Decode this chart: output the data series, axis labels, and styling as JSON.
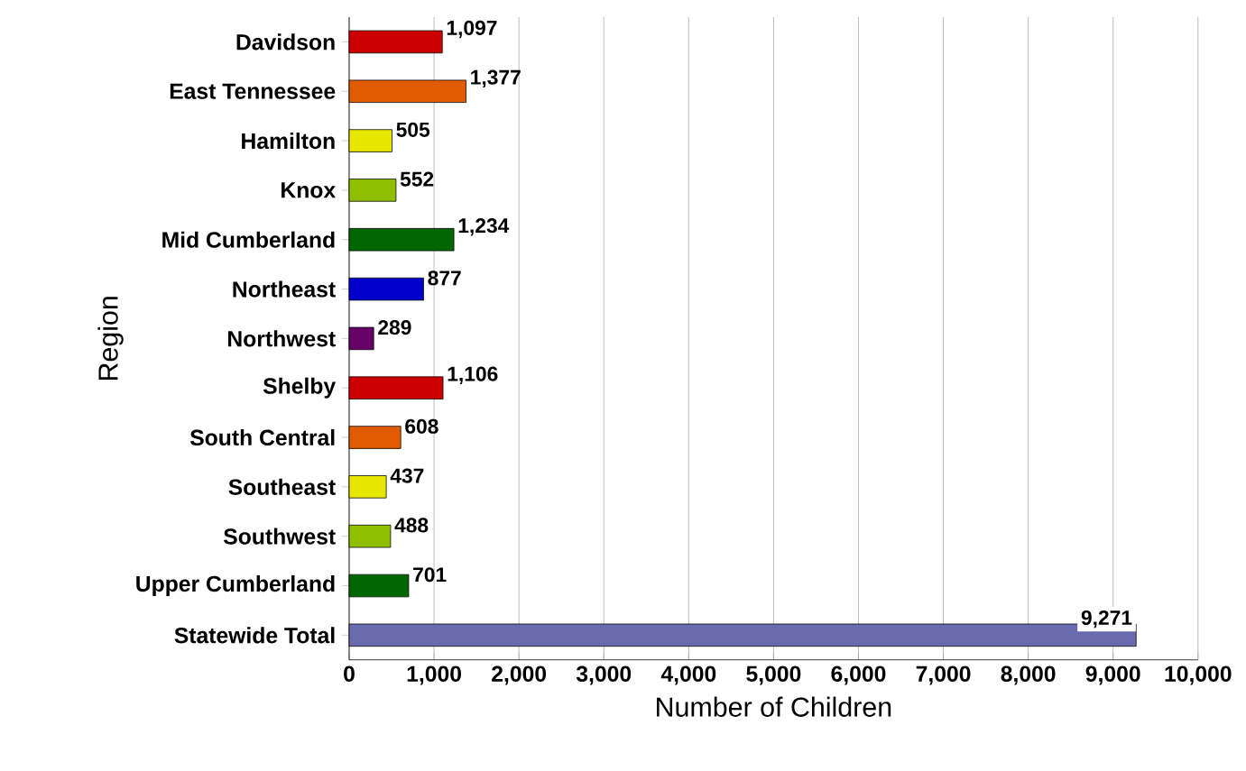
{
  "chart_data": {
    "type": "bar",
    "orientation": "horizontal",
    "xlabel": "Number of Children",
    "ylabel": "Region",
    "categories": [
      "Davidson",
      "East Tennessee",
      "Hamilton",
      "Knox",
      "Mid Cumberland",
      "Northeast",
      "Northwest",
      "Shelby",
      "South Central",
      "Southeast",
      "Southwest",
      "Upper Cumberland",
      "Statewide Total"
    ],
    "values": [
      1097,
      1377,
      505,
      552,
      1234,
      877,
      289,
      1106,
      608,
      437,
      488,
      701,
      9271
    ],
    "value_labels": [
      "1,097",
      "1,377",
      "505",
      "552",
      "1,234",
      "877",
      "289",
      "1,106",
      "608",
      "437",
      "488",
      "701",
      "9,271"
    ],
    "colors": [
      "#cc0000",
      "#e05a00",
      "#e6e600",
      "#8fbf00",
      "#006600",
      "#0000cc",
      "#660066",
      "#cc0000",
      "#e05a00",
      "#e6e600",
      "#8fbf00",
      "#006600",
      "#6a6aae"
    ],
    "xlim": [
      0,
      10000
    ],
    "xticks": [
      0,
      {
        "value": 1000,
        "label": "1,000"
      },
      {
        "value": 2000,
        "label": "2,000"
      },
      {
        "value": 3000,
        "label": "3,000"
      },
      {
        "value": 4000,
        "label": "4,000"
      },
      {
        "value": 5000,
        "label": "5,000"
      },
      {
        "value": 6000,
        "label": "6,000"
      },
      {
        "value": 7000,
        "label": "7,000"
      },
      {
        "value": 8000,
        "label": "8,000"
      },
      {
        "value": 9000,
        "label": "9,000"
      },
      {
        "value": 10000,
        "label": "10,000"
      }
    ],
    "grid": "x"
  }
}
